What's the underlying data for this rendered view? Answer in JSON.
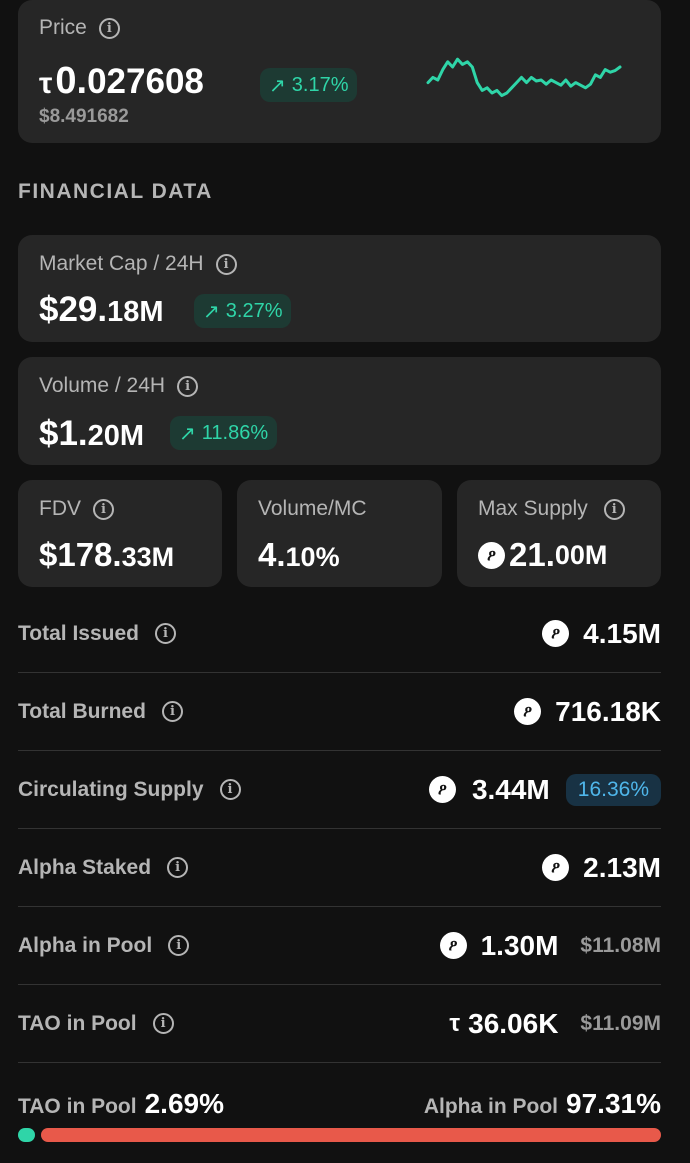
{
  "price": {
    "label": "Price",
    "currency_symbol": "τ",
    "value_main": "0.",
    "value_rest": "027608",
    "change": "3.17%",
    "usd": "$8.491682",
    "sparkline": [
      0.45,
      0.55,
      0.5,
      0.7,
      0.85,
      0.75,
      0.9,
      0.8,
      0.85,
      0.75,
      0.45,
      0.3,
      0.35,
      0.25,
      0.3,
      0.2,
      0.25,
      0.35,
      0.45,
      0.55,
      0.45,
      0.55,
      0.48,
      0.5,
      0.42,
      0.5,
      0.45,
      0.4,
      0.5,
      0.38,
      0.45,
      0.4,
      0.35,
      0.42,
      0.6,
      0.55,
      0.7,
      0.65,
      0.68,
      0.75
    ],
    "sparkline_color": "#2fd5a8"
  },
  "section_title": "FINANCIAL DATA",
  "market_cap": {
    "label": "Market Cap / 24H",
    "main": "$29.",
    "rest": "18M",
    "change": "3.27%"
  },
  "volume": {
    "label": "Volume / 24H",
    "main": "$1.",
    "rest": "20M",
    "change": "11.86%"
  },
  "fdv": {
    "label": "FDV",
    "main": "$178.",
    "rest": "33M"
  },
  "volume_mc": {
    "label": "Volume/MC",
    "main": "4.",
    "rest": "10%"
  },
  "max_supply": {
    "label": "Max Supply",
    "main": "21.",
    "rest": "00M"
  },
  "rows": [
    {
      "label": "Total Issued",
      "value": "4.15M"
    },
    {
      "label": "Total Burned",
      "value": "716.18K"
    },
    {
      "label": "Circulating Supply",
      "value": "3.44M",
      "badge": "16.36%"
    },
    {
      "label": "Alpha Staked",
      "value": "2.13M"
    },
    {
      "label": "Alpha in Pool",
      "value": "1.30M",
      "usd": "$11.08M"
    },
    {
      "label": "TAO in Pool",
      "value": "36.06K",
      "usd": "$11.09M"
    }
  ],
  "alpha_symbol": "ዖ",
  "tao_symbol": "τ",
  "pool_split": {
    "tao_label": "TAO in Pool",
    "tao_pct": "2.69%",
    "tao_fraction": 0.0269,
    "alpha_label": "Alpha in Pool",
    "alpha_pct": "97.31%",
    "tao_color": "#2fd5a8",
    "alpha_color": "#e8594a"
  }
}
